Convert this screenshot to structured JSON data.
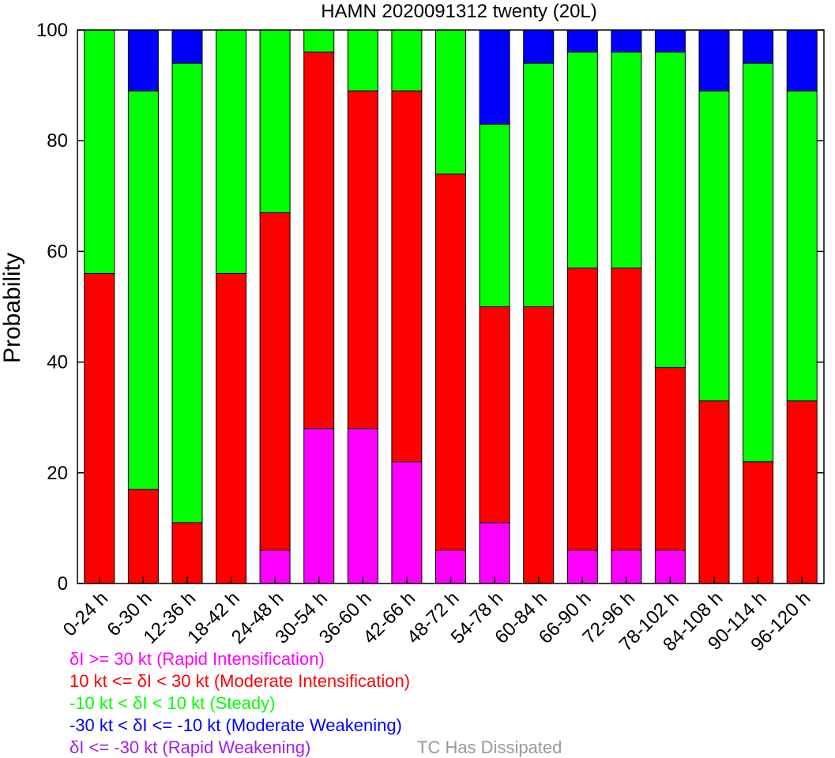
{
  "chart_data": {
    "type": "bar",
    "stacked": true,
    "title": "HAMN 2020091312 twenty (20L)",
    "ylabel": "Probability",
    "xlabel": "",
    "ylim": [
      0,
      100
    ],
    "yticks": [
      0,
      20,
      40,
      60,
      80,
      100
    ],
    "grid": false,
    "categories": [
      "0-24 h",
      "6-30 h",
      "12-36 h",
      "18-42 h",
      "24-48 h",
      "30-54 h",
      "36-60 h",
      "42-66 h",
      "48-72 h",
      "54-78 h",
      "60-84 h",
      "66-90 h",
      "72-96 h",
      "78-102 h",
      "84-108 h",
      "90-114 h",
      "96-120 h"
    ],
    "series": [
      {
        "name": "δI >= 30 kt (Rapid Intensification)",
        "color": "#ff00ff",
        "values": [
          0,
          0,
          0,
          0,
          6,
          28,
          28,
          22,
          6,
          11,
          0,
          6,
          6,
          6,
          0,
          0,
          0
        ]
      },
      {
        "name": "10 kt <= δI < 30 kt (Moderate Intensification)",
        "color": "#ff0000",
        "values": [
          56,
          17,
          11,
          56,
          61,
          68,
          61,
          67,
          68,
          39,
          50,
          51,
          51,
          33,
          33,
          22,
          33
        ]
      },
      {
        "name": "-10 kt < δI < 10 kt (Steady)",
        "color": "#00ff00",
        "values": [
          44,
          72,
          83,
          44,
          33,
          4,
          11,
          11,
          26,
          33,
          44,
          39,
          39,
          57,
          56,
          72,
          56
        ]
      },
      {
        "name": "-30 kt < δI <= -10 kt (Moderate Weakening)",
        "color": "#0000ff",
        "values": [
          0,
          11,
          6,
          0,
          0,
          0,
          0,
          0,
          0,
          17,
          6,
          4,
          4,
          4,
          11,
          6,
          11
        ]
      },
      {
        "name": "δI <= -30 kt (Rapid Weakening)",
        "color": "#a020f0",
        "values": [
          0,
          0,
          0,
          0,
          0,
          0,
          0,
          0,
          0,
          0,
          0,
          0,
          0,
          0,
          0,
          0,
          0
        ]
      }
    ],
    "extra_legend": {
      "label": "TC Has Dissipated",
      "color": "#999999"
    }
  }
}
